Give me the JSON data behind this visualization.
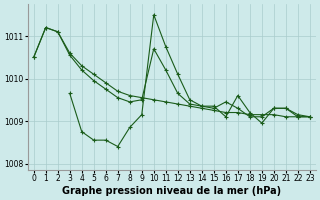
{
  "xlabel": "Graphe pression niveau de la mer (hPa)",
  "background_color": "#ceeaea",
  "grid_color": "#aacccc",
  "line_color": "#1a5c1a",
  "series_top": {
    "x": [
      0,
      1,
      2,
      3,
      4,
      5,
      6,
      7,
      8,
      9,
      10,
      11,
      12,
      13,
      14,
      15,
      16,
      17,
      18,
      19,
      20,
      21,
      22,
      23
    ],
    "y": [
      1010.5,
      1011.2,
      1011.1,
      1010.6,
      1010.3,
      1010.1,
      1009.9,
      1009.7,
      1009.6,
      1009.55,
      1009.5,
      1009.45,
      1009.4,
      1009.35,
      1009.3,
      1009.25,
      1009.2,
      1009.2,
      1009.15,
      1009.15,
      1009.15,
      1009.1,
      1009.1,
      1009.1
    ]
  },
  "series_mid1": {
    "x": [
      0,
      1,
      2,
      3,
      4,
      5,
      6,
      7,
      8,
      9,
      10,
      11,
      12,
      13,
      14,
      15,
      16,
      17,
      18,
      19,
      20,
      21,
      22,
      23
    ],
    "y": [
      1010.5,
      1011.2,
      1011.1,
      1010.55,
      1010.2,
      1009.95,
      1009.75,
      1009.55,
      1009.45,
      1009.5,
      1010.7,
      1010.2,
      1009.65,
      1009.4,
      1009.35,
      1009.3,
      1009.45,
      1009.3,
      1009.1,
      1009.1,
      1009.3,
      1009.3,
      1009.1,
      1009.1
    ]
  },
  "series_bottom": {
    "x": [
      3,
      4,
      5,
      6,
      7,
      8,
      9,
      10,
      11,
      12,
      13,
      14,
      15,
      16,
      17,
      18,
      19,
      20,
      21,
      22,
      23
    ],
    "y": [
      1009.65,
      1008.75,
      1008.55,
      1008.55,
      1008.4,
      1008.85,
      1009.15,
      1011.5,
      1010.75,
      1010.1,
      1009.5,
      1009.35,
      1009.35,
      1009.1,
      1009.6,
      1009.2,
      1008.95,
      1009.3,
      1009.3,
      1009.15,
      1009.1
    ]
  },
  "ylim": [
    1007.85,
    1011.75
  ],
  "yticks": [
    1008,
    1009,
    1010,
    1011
  ],
  "xticks": [
    0,
    1,
    2,
    3,
    4,
    5,
    6,
    7,
    8,
    9,
    10,
    11,
    12,
    13,
    14,
    15,
    16,
    17,
    18,
    19,
    20,
    21,
    22,
    23
  ],
  "tick_fontsize": 5.5,
  "xlabel_fontsize": 7,
  "marker": "+"
}
